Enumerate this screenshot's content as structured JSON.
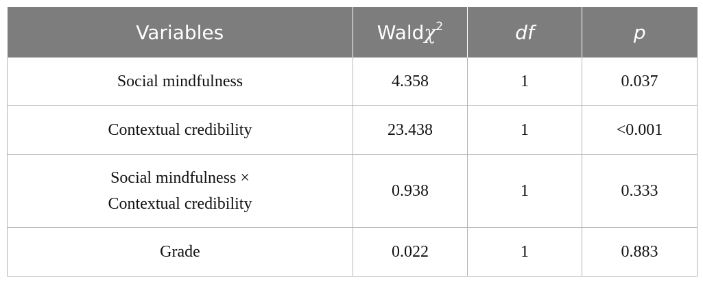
{
  "table": {
    "headers": {
      "variables": "Variables",
      "wald_prefix": "Wald",
      "wald_symbol": "χ",
      "wald_sup": "2",
      "df": "df",
      "p": "p"
    },
    "rows": [
      {
        "variable": "Social mindfulness",
        "variable_line2": "",
        "wald": "4.358",
        "df": "1",
        "p": "0.037"
      },
      {
        "variable": "Contextual credibility",
        "variable_line2": "",
        "wald": "23.438",
        "df": "1",
        "p": "<0.001"
      },
      {
        "variable": "Social mindfulness ×",
        "variable_line2": "Contextual credibility",
        "wald": "0.938",
        "df": "1",
        "p": "0.333"
      },
      {
        "variable": "Grade",
        "variable_line2": "",
        "wald": "0.022",
        "df": "1",
        "p": "0.883"
      }
    ]
  }
}
